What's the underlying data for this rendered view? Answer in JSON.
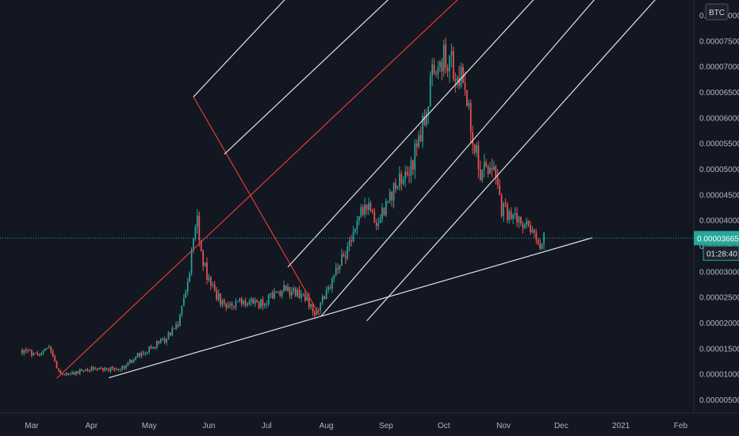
{
  "chart_data": {
    "type": "candlestick",
    "quote_currency": "BTC",
    "last_price": "0.00003665",
    "countdown": "01:28:40",
    "y_tick_labels": [
      "0.00000500",
      "0.00001000",
      "0.00001500",
      "0.00002000",
      "0.00002500",
      "0.00003000",
      "0.00003500",
      "0.00004000",
      "0.00004500",
      "0.00005000",
      "0.00005500",
      "0.00006000",
      "0.00006500",
      "0.00007000",
      "0.00007500",
      "0.00008000"
    ],
    "x_tick_labels": [
      "Mar",
      "Apr",
      "May",
      "Jun",
      "Jul",
      "Aug",
      "Sep",
      "Oct",
      "Nov",
      "Dec",
      "2021",
      "Feb"
    ],
    "ylim": [
      2.5e-06,
      8.4e-06
    ],
    "grid": false,
    "price_path": [
      [
        "2020-02-25",
        1.48e-05
      ],
      [
        "2020-03-03",
        1.38e-05
      ],
      [
        "2020-03-10",
        1.58e-05
      ],
      [
        "2020-03-14",
        1.12e-05
      ],
      [
        "2020-03-18",
        1e-05
      ],
      [
        "2020-03-25",
        1.06e-05
      ],
      [
        "2020-04-01",
        1.12e-05
      ],
      [
        "2020-04-10",
        1.11e-05
      ],
      [
        "2020-04-18",
        1.15e-05
      ],
      [
        "2020-04-25",
        1.38e-05
      ],
      [
        "2020-05-02",
        1.52e-05
      ],
      [
        "2020-05-10",
        1.72e-05
      ],
      [
        "2020-05-16",
        2.02e-05
      ],
      [
        "2020-05-20",
        2.62e-05
      ],
      [
        "2020-05-24",
        3.55e-05
      ],
      [
        "2020-05-26",
        4.12e-05
      ],
      [
        "2020-05-28",
        3.3e-05
      ],
      [
        "2020-06-02",
        2.72e-05
      ],
      [
        "2020-06-08",
        2.4e-05
      ],
      [
        "2020-06-15",
        2.4e-05
      ],
      [
        "2020-06-22",
        2.42e-05
      ],
      [
        "2020-06-29",
        2.38e-05
      ],
      [
        "2020-07-04",
        2.58e-05
      ],
      [
        "2020-07-10",
        2.68e-05
      ],
      [
        "2020-07-16",
        2.58e-05
      ],
      [
        "2020-07-22",
        2.45e-05
      ],
      [
        "2020-07-26",
        2.18e-05
      ],
      [
        "2020-08-01",
        2.58e-05
      ],
      [
        "2020-08-06",
        3.05e-05
      ],
      [
        "2020-08-12",
        3.48e-05
      ],
      [
        "2020-08-18",
        4.25e-05
      ],
      [
        "2020-08-23",
        4.2e-05
      ],
      [
        "2020-08-28",
        4e-05
      ],
      [
        "2020-09-03",
        4.45e-05
      ],
      [
        "2020-09-09",
        4.8e-05
      ],
      [
        "2020-09-15",
        5.15e-05
      ],
      [
        "2020-09-20",
        5.9e-05
      ],
      [
        "2020-09-25",
        6.8e-05
      ],
      [
        "2020-09-29",
        7.2e-05
      ],
      [
        "2020-10-03",
        7.15e-05
      ],
      [
        "2020-10-08",
        6.95e-05
      ],
      [
        "2020-10-12",
        6.65e-05
      ],
      [
        "2020-10-16",
        5.7e-05
      ],
      [
        "2020-10-20",
        4.9e-05
      ],
      [
        "2020-10-26",
        5.1e-05
      ],
      [
        "2020-10-31",
        4.25e-05
      ],
      [
        "2020-11-05",
        4.05e-05
      ],
      [
        "2020-11-11",
        3.95e-05
      ],
      [
        "2020-11-16",
        3.75e-05
      ],
      [
        "2020-11-20",
        3.6e-05
      ],
      [
        "2020-11-22",
        3.66e-05
      ]
    ],
    "drawings": {
      "support_line": {
        "from": [
          "2020-04-10",
          9.4e-06
        ],
        "to": [
          "2020-12-17",
          3.67e-05
        ]
      },
      "fork_pivot_low": [
        "2020-03-14",
        9.3e-06
      ],
      "fork_pivot_high": [
        "2020-05-24",
        6.42e-05
      ],
      "fork_pivot_low2": [
        "2020-07-29",
        2.13e-05
      ],
      "fork_handle_end": [
        "2020-10-19",
        8.7e-05
      ],
      "pitchfork_parallels": [
        {
          "from": [
            "2020-05-24",
            6.42e-05
          ],
          "to": [
            "2020-07-20",
            8.7e-05
          ]
        },
        {
          "from": [
            "2020-06-09",
            5.3e-05
          ],
          "to": [
            "2020-09-13",
            8.7e-05
          ]
        },
        {
          "from": [
            "2020-07-12",
            3.1e-05
          ],
          "to": [
            "2020-11-26",
            8.7e-05
          ]
        },
        {
          "from": [
            "2020-07-29",
            2.13e-05
          ],
          "to": [
            "2020-12-27",
            8.7e-05
          ]
        },
        {
          "from": [
            "2020-08-22",
            2.05e-05
          ],
          "to": [
            "2021-01-28",
            8.7e-05
          ]
        }
      ]
    },
    "colors": {
      "background": "#131722",
      "up": "#26a69a",
      "down": "#ef5350",
      "axis_text": "#b2b5be",
      "line": "#e0e3eb",
      "fork": "#e53935",
      "price_tag": "#26a69a"
    }
  }
}
